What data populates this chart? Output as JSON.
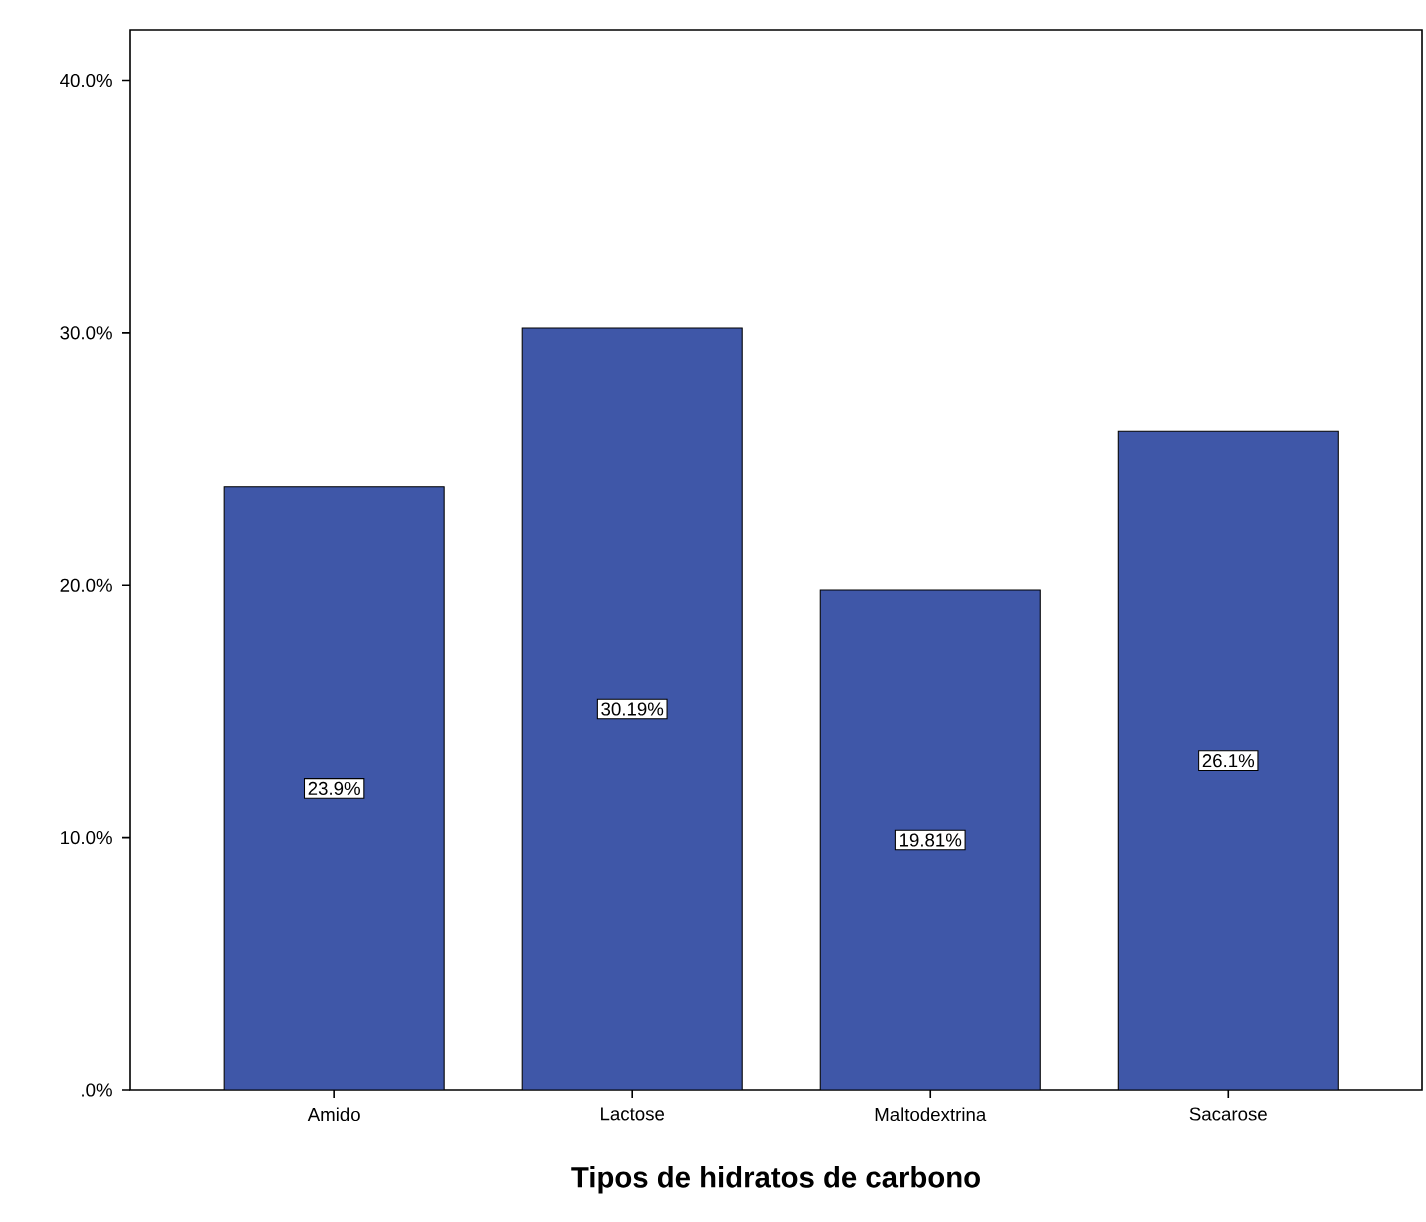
{
  "chart_data": {
    "type": "bar",
    "xlabel": "**Tipos de hidratos de carbono**",
    "categories": [
      "Amido",
      "Lactose",
      "Maltodextrina",
      "Sacarose"
    ],
    "values": [
      23.9,
      30.19,
      19.81,
      26.1
    ],
    "value_labels": [
      "23.9%",
      "30.19%",
      "19.81%",
      "26.1%"
    ],
    "color": "#3f57a8",
    "ylim": [
      0,
      42
    ],
    "yticks": [
      {
        "value": 0,
        "label": ".0%"
      },
      {
        "value": 10,
        "label": "10.0%"
      },
      {
        "value": 20,
        "label": "20.0%"
      },
      {
        "value": 30,
        "label": "30.0%"
      },
      {
        "value": 40,
        "label": "40.0%"
      }
    ],
    "grid": false
  }
}
